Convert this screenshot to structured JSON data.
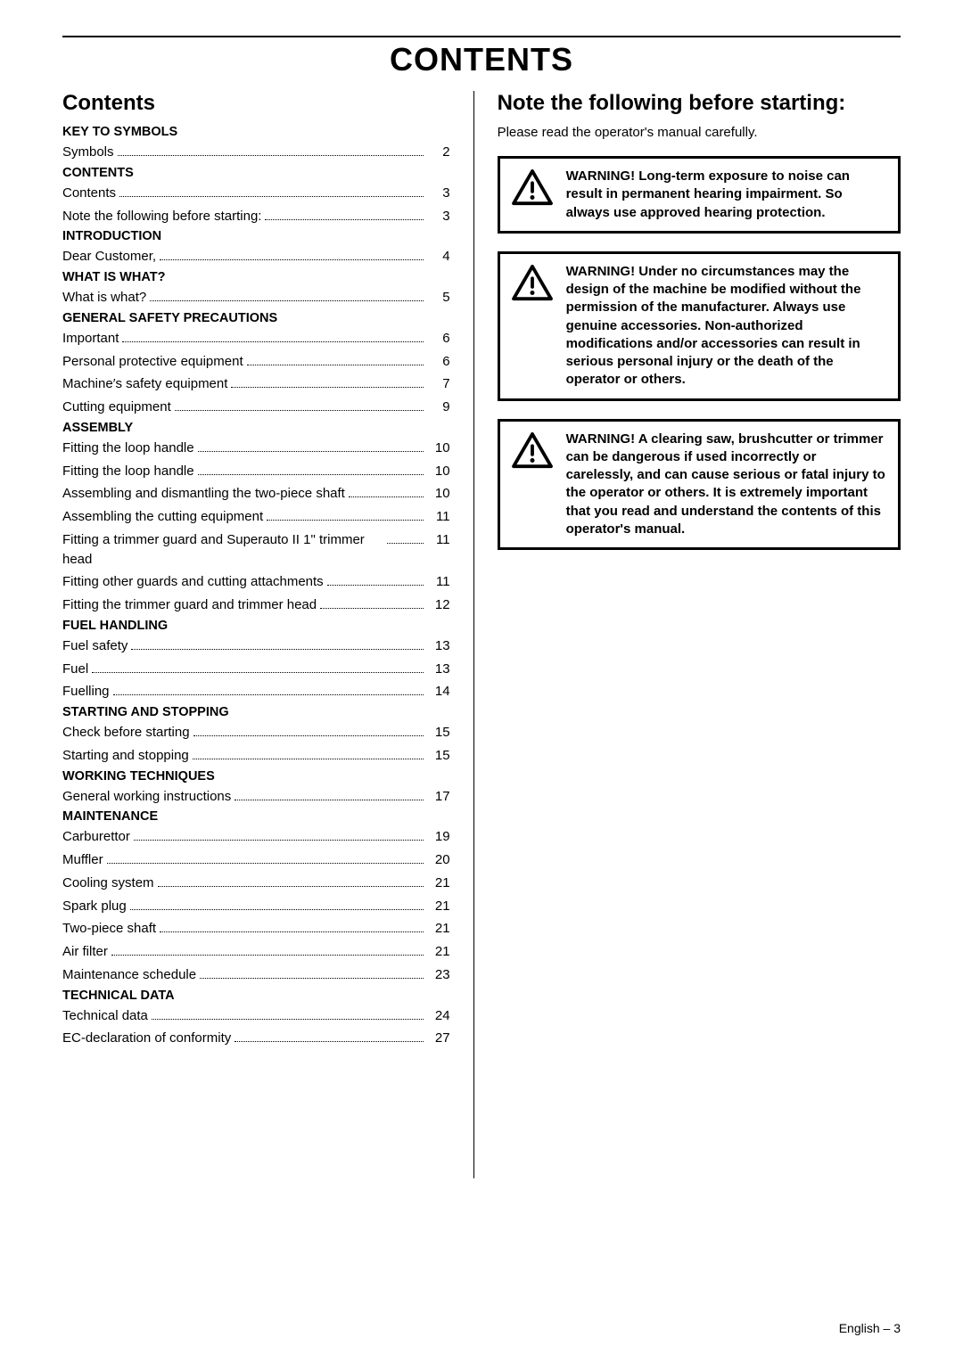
{
  "page": {
    "title": "CONTENTS",
    "footer_lang": "English",
    "footer_dash": " – ",
    "footer_page": "3"
  },
  "left": {
    "heading": "Contents",
    "sections": [
      {
        "header": "KEY TO SYMBOLS",
        "items": [
          {
            "label": "Symbols",
            "page": "2"
          }
        ]
      },
      {
        "header": "CONTENTS",
        "items": [
          {
            "label": "Contents",
            "page": "3"
          },
          {
            "label": "Note the following before starting:",
            "page": "3"
          }
        ]
      },
      {
        "header": "INTRODUCTION",
        "items": [
          {
            "label": "Dear Customer,",
            "page": "4"
          }
        ]
      },
      {
        "header": "WHAT IS WHAT?",
        "items": [
          {
            "label": "What is what?",
            "page": "5"
          }
        ]
      },
      {
        "header": "GENERAL SAFETY PRECAUTIONS",
        "items": [
          {
            "label": "Important",
            "page": "6"
          },
          {
            "label": "Personal protective equipment",
            "page": "6"
          },
          {
            "label": "Machine′s safety equipment",
            "page": "7"
          },
          {
            "label": "Cutting equipment",
            "page": "9"
          }
        ]
      },
      {
        "header": "ASSEMBLY",
        "items": [
          {
            "label": "Fitting the loop handle",
            "page": "10"
          },
          {
            "label": "Fitting the loop handle",
            "page": "10"
          },
          {
            "label": "Assembling and dismantling the two-piece shaft",
            "page": "10"
          },
          {
            "label": "Assembling the cutting equipment",
            "page": "11"
          },
          {
            "label": "Fitting a trimmer guard and Superauto II 1\" trimmer head",
            "page": "11",
            "wrap": true
          },
          {
            "label": "Fitting other guards and cutting attachments",
            "page": "11"
          },
          {
            "label": "Fitting the trimmer guard and trimmer head",
            "page": "12"
          }
        ]
      },
      {
        "header": "FUEL HANDLING",
        "items": [
          {
            "label": "Fuel safety",
            "page": "13"
          },
          {
            "label": "Fuel",
            "page": "13"
          },
          {
            "label": "Fuelling",
            "page": "14"
          }
        ]
      },
      {
        "header": "STARTING AND STOPPING",
        "items": [
          {
            "label": "Check before starting",
            "page": "15"
          },
          {
            "label": "Starting and stopping",
            "page": "15"
          }
        ]
      },
      {
        "header": "WORKING TECHNIQUES",
        "items": [
          {
            "label": "General working instructions",
            "page": "17"
          }
        ]
      },
      {
        "header": "MAINTENANCE",
        "items": [
          {
            "label": "Carburettor",
            "page": "19"
          },
          {
            "label": "Muffler",
            "page": "20"
          },
          {
            "label": "Cooling system",
            "page": "21"
          },
          {
            "label": "Spark plug",
            "page": "21"
          },
          {
            "label": "Two-piece shaft",
            "page": "21"
          },
          {
            "label": "Air filter",
            "page": "21"
          },
          {
            "label": "Maintenance schedule",
            "page": "23"
          }
        ]
      },
      {
        "header": "TECHNICAL DATA",
        "items": [
          {
            "label": "Technical data",
            "page": "24"
          },
          {
            "label": "EC-declaration of conformity",
            "page": "27"
          }
        ]
      }
    ]
  },
  "right": {
    "heading": "Note the following before starting:",
    "intro": "Please read the operator's manual carefully.",
    "warnings": [
      "WARNING! Long-term exposure to noise can result in permanent hearing impairment. So always use approved hearing protection.",
      "WARNING! Under no circumstances may the design of the machine be modified without the permission of the manufacturer. Always use genuine accessories. Non-authorized modifications and/or accessories can result in serious personal injury or the death of the operator or others.",
      "WARNING! A clearing saw, brushcutter or trimmer can be dangerous if used incorrectly or carelessly, and can cause serious or fatal injury to the operator or others. It is extremely important that you read and understand the contents of this operator's manual."
    ]
  },
  "colors": {
    "text": "#000000",
    "background": "#ffffff",
    "border": "#000000"
  }
}
